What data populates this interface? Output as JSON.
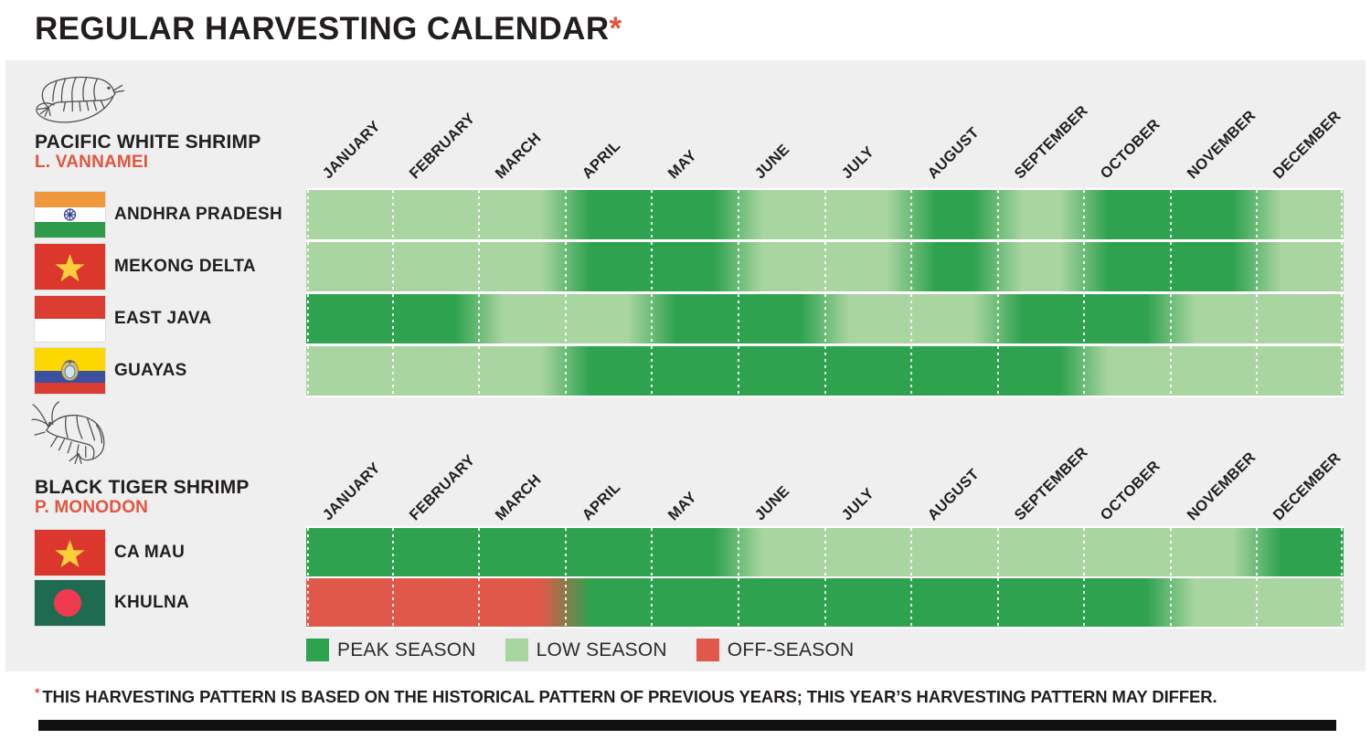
{
  "title": "REGULAR HARVESTING CALENDAR",
  "title_asterisk": "*",
  "colors": {
    "peak": "#2EA24E",
    "low": "#A9D5A1",
    "off": "#E0584A",
    "accent_red": "#E0563F",
    "text": "#221E1F",
    "panel_bg": "#EFEFF0",
    "separator_white": "#FFFFFF",
    "bottom_bar": "#111111"
  },
  "legend": [
    {
      "label": "PEAK SEASON",
      "key": "peak"
    },
    {
      "label": "LOW SEASON",
      "key": "low"
    },
    {
      "label": "OFF-SEASON",
      "key": "off"
    }
  ],
  "chart_data": {
    "type": "heatmap",
    "title": "REGULAR HARVESTING CALENDAR",
    "categories": [
      "JANUARY",
      "FEBRUARY",
      "MARCH",
      "APRIL",
      "MAY",
      "JUNE",
      "JULY",
      "AUGUST",
      "SEPTEMBER",
      "OCTOBER",
      "NOVEMBER",
      "DECEMBER"
    ],
    "value_domain": [
      "peak",
      "low",
      "off"
    ],
    "legend_position": "bottom",
    "sections": [
      {
        "species": "PACIFIC WHITE SHRIMP",
        "latin": "L. VANNAMEI",
        "icon": "white-shrimp-icon",
        "rows": [
          {
            "region": "ANDHRA PRADESH",
            "flag": "india",
            "seasons": [
              "low",
              "low",
              "low",
              "peak",
              "peak",
              "low",
              "low",
              "peak",
              "low",
              "peak",
              "peak",
              "low"
            ]
          },
          {
            "region": "MEKONG DELTA",
            "flag": "vietnam",
            "seasons": [
              "low",
              "low",
              "low",
              "peak",
              "peak",
              "low",
              "low",
              "peak",
              "low",
              "peak",
              "peak",
              "low"
            ]
          },
          {
            "region": "EAST JAVA",
            "flag": "indonesia",
            "seasons": [
              "peak",
              "peak",
              "low",
              "low",
              "peak",
              "peak",
              "low",
              "low",
              "peak",
              "peak",
              "low",
              "low"
            ]
          },
          {
            "region": "GUAYAS",
            "flag": "ecuador",
            "seasons": [
              "low",
              "low",
              "low",
              "peak",
              "peak",
              "peak",
              "peak",
              "peak",
              "peak",
              "low",
              "low",
              "low"
            ]
          }
        ]
      },
      {
        "species": "BLACK TIGER SHRIMP",
        "latin": "P. MONODON",
        "icon": "tiger-shrimp-icon",
        "rows": [
          {
            "region": "CA MAU",
            "flag": "vietnam",
            "seasons": [
              "peak",
              "peak",
              "peak",
              "peak",
              "peak",
              "low",
              "low",
              "low",
              "low",
              "low",
              "low",
              "peak"
            ]
          },
          {
            "region": "KHULNA",
            "flag": "bangladesh",
            "seasons": [
              "off",
              "off",
              "off",
              "peak",
              "peak",
              "peak",
              "peak",
              "peak",
              "peak",
              "peak",
              "low",
              "low"
            ]
          }
        ]
      }
    ]
  },
  "footnote_asterisk": "*",
  "footnote": "THIS HARVESTING PATTERN IS BASED ON THE HISTORICAL PATTERN OF PREVIOUS YEARS; THIS YEAR’S HARVESTING PATTERN MAY DIFFER."
}
